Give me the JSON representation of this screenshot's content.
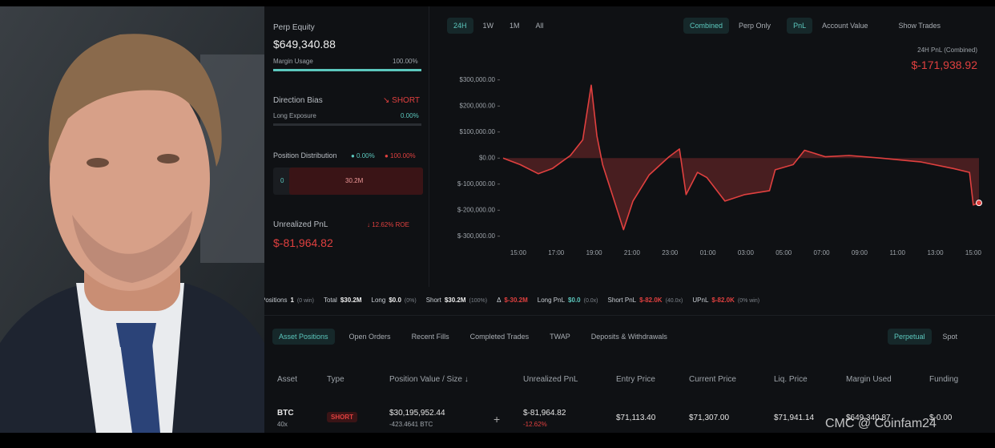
{
  "account": {
    "perp_equity": {
      "label": "Perp Equity",
      "value": "$649,340.88"
    },
    "margin_usage": {
      "label": "Margin Usage",
      "value": "100.00%",
      "percent": 100
    },
    "direction_bias": {
      "label": "Direction Bias",
      "value": "↘ SHORT"
    },
    "long_exposure": {
      "label": "Long Exposure",
      "value": "0.00%",
      "percent": 0
    },
    "position_distribution": {
      "label": "Position Distribution",
      "long": "● 0.00%",
      "short": "● 100.00%",
      "long_amount": "0",
      "short_amount": "30.2M"
    },
    "unrealized_pnl": {
      "label": "Unrealized PnL",
      "roe": "↓ 12.62% ROE",
      "value": "$-81,964.82"
    }
  },
  "chart_controls": {
    "ranges": [
      "24H",
      "1W",
      "1M",
      "All"
    ],
    "views": [
      "Combined",
      "Perp Only"
    ],
    "metrics": [
      "PnL",
      "Account Value"
    ],
    "show_trades": "Show Trades"
  },
  "chart_data": {
    "type": "line",
    "title": "24H PnL (Combined)",
    "current_value": "$-171,938.92",
    "color": "#e0403f",
    "x": [
      -0.8,
      0.1,
      1.06,
      1.8,
      2.75,
      3.4,
      3.85,
      4.15,
      4.45,
      5.0,
      5.55,
      6.05,
      6.9,
      7.95,
      8.5,
      8.85,
      9.45,
      9.95,
      10.9,
      11.95,
      13.25,
      13.55,
      14.5,
      15.1,
      16.2,
      17.45,
      19.15,
      21.25,
      22.95,
      23.8,
      24.0,
      24.3
    ],
    "values": [
      0,
      -25000,
      -60000,
      -40000,
      10000,
      70000,
      280000,
      85000,
      -25000,
      -150000,
      -275000,
      -165000,
      -65000,
      5000,
      35000,
      -140000,
      -55000,
      -75000,
      -165000,
      -140000,
      -125000,
      -45000,
      -25000,
      30000,
      5000,
      10000,
      0,
      -15000,
      -40000,
      -55000,
      -180000,
      -172000
    ],
    "xlim": [
      -0.8,
      24.3
    ],
    "ylim": [
      -310000,
      330000
    ],
    "xticks": [
      {
        "value": 0,
        "label": "15:00"
      },
      {
        "value": 2,
        "label": "17:00"
      },
      {
        "value": 4,
        "label": "19:00"
      },
      {
        "value": 6,
        "label": "21:00"
      },
      {
        "value": 8,
        "label": "23:00"
      },
      {
        "value": 10,
        "label": "01:00"
      },
      {
        "value": 12,
        "label": "03:00"
      },
      {
        "value": 14,
        "label": "05:00"
      },
      {
        "value": 16,
        "label": "07:00"
      },
      {
        "value": 18,
        "label": "09:00"
      },
      {
        "value": 20,
        "label": "11:00"
      },
      {
        "value": 22,
        "label": "13:00"
      },
      {
        "value": 24,
        "label": "15:00"
      }
    ],
    "yticks": [
      {
        "value": 300000,
        "label": "$300,000.00"
      },
      {
        "value": 200000,
        "label": "$200,000.00"
      },
      {
        "value": 100000,
        "label": "$100,000.00"
      },
      {
        "value": 0,
        "label": "$0.00"
      },
      {
        "value": -100000,
        "label": "$-100,000.00"
      },
      {
        "value": -200000,
        "label": "$-200,000.00"
      },
      {
        "value": -300000,
        "label": "$-300,000.00"
      }
    ]
  },
  "summary": [
    {
      "label": "Positions",
      "value": "1",
      "note": "(0 win)"
    },
    {
      "label": "Total",
      "value": "$30.2M"
    },
    {
      "label": "Long",
      "value": "$0.0",
      "note": "(0%)"
    },
    {
      "label": "Short",
      "value": "$30.2M",
      "note": "(100%)"
    },
    {
      "label": "Δ",
      "value": "$-30.2M"
    },
    {
      "label": "Long PnL",
      "value": "$0.0",
      "note": "(0.0x)"
    },
    {
      "label": "Short PnL",
      "value": "$-82.0K",
      "note": "(40.0x)"
    },
    {
      "label": "UPnL",
      "value": "$-82.0K",
      "note": "(0% win)"
    }
  ],
  "tabs": {
    "left": [
      "Asset Positions",
      "Open Orders",
      "Recent Fills",
      "Completed Trades",
      "TWAP",
      "Deposits & Withdrawals"
    ],
    "right": [
      "Perpetual",
      "Spot"
    ]
  },
  "table": {
    "headers": [
      "Asset",
      "Type",
      "Position Value / Size ↓",
      "Unrealized PnL",
      "Entry Price",
      "Current Price",
      "Liq. Price",
      "Margin Used",
      "Funding"
    ],
    "rows": [
      {
        "asset": "BTC",
        "leverage": "40x",
        "type": "SHORT",
        "position_value": "$30,195,952.44",
        "size": "-423.4641 BTC",
        "unrealized_pnl": "$-81,964.82",
        "unrealized_pnl_pct": "-12.62%",
        "entry_price": "$71,113.40",
        "current_price": "$71,307.00",
        "liq_price": "$71,941.14",
        "margin_used": "$649,340.87",
        "funding": "$-0.00"
      }
    ]
  },
  "watermark": "CMC @ Coinfam24"
}
